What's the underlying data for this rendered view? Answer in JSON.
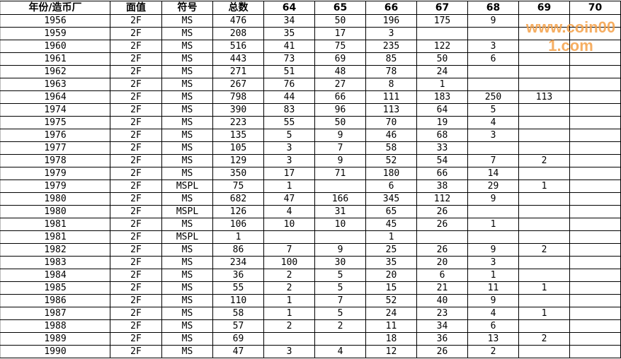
{
  "headers": [
    "年份/造币厂",
    "面值",
    "符号",
    "总数",
    "64",
    "65",
    "66",
    "67",
    "68",
    "69",
    "70"
  ],
  "rows": [
    [
      "1956",
      "2F",
      "MS",
      "476",
      "34",
      "50",
      "196",
      "175",
      "9",
      "",
      ""
    ],
    [
      "1959",
      "2F",
      "MS",
      "208",
      "35",
      "17",
      "3",
      "",
      "",
      "",
      ""
    ],
    [
      "1960",
      "2F",
      "MS",
      "516",
      "41",
      "75",
      "235",
      "122",
      "3",
      "",
      ""
    ],
    [
      "1961",
      "2F",
      "MS",
      "443",
      "73",
      "69",
      "85",
      "50",
      "6",
      "",
      ""
    ],
    [
      "1962",
      "2F",
      "MS",
      "271",
      "51",
      "48",
      "78",
      "24",
      "",
      "",
      ""
    ],
    [
      "1963",
      "2F",
      "MS",
      "267",
      "76",
      "27",
      "8",
      "1",
      "",
      "",
      ""
    ],
    [
      "1964",
      "2F",
      "MS",
      "798",
      "44",
      "66",
      "111",
      "183",
      "250",
      "113",
      ""
    ],
    [
      "1974",
      "2F",
      "MS",
      "390",
      "83",
      "96",
      "113",
      "64",
      "5",
      "",
      ""
    ],
    [
      "1975",
      "2F",
      "MS",
      "223",
      "55",
      "50",
      "70",
      "19",
      "4",
      "",
      ""
    ],
    [
      "1976",
      "2F",
      "MS",
      "135",
      "5",
      "9",
      "46",
      "68",
      "3",
      "",
      ""
    ],
    [
      "1977",
      "2F",
      "MS",
      "105",
      "3",
      "7",
      "58",
      "33",
      "",
      "",
      ""
    ],
    [
      "1978",
      "2F",
      "MS",
      "129",
      "3",
      "9",
      "52",
      "54",
      "7",
      "2",
      ""
    ],
    [
      "1979",
      "2F",
      "MS",
      "350",
      "17",
      "71",
      "180",
      "66",
      "14",
      "",
      ""
    ],
    [
      "1979",
      "2F",
      "MSPL",
      "75",
      "1",
      "",
      "6",
      "38",
      "29",
      "1",
      ""
    ],
    [
      "1980",
      "2F",
      "MS",
      "682",
      "47",
      "166",
      "345",
      "112",
      "9",
      "",
      ""
    ],
    [
      "1980",
      "2F",
      "MSPL",
      "126",
      "4",
      "31",
      "65",
      "26",
      "",
      "",
      ""
    ],
    [
      "1981",
      "2F",
      "MS",
      "106",
      "10",
      "10",
      "45",
      "26",
      "1",
      "",
      ""
    ],
    [
      "1981",
      "2F",
      "MSPL",
      "1",
      "",
      "",
      "1",
      "",
      "",
      "",
      ""
    ],
    [
      "1982",
      "2F",
      "MS",
      "86",
      "7",
      "9",
      "25",
      "26",
      "9",
      "2",
      ""
    ],
    [
      "1983",
      "2F",
      "MS",
      "234",
      "100",
      "30",
      "35",
      "20",
      "3",
      "",
      ""
    ],
    [
      "1984",
      "2F",
      "MS",
      "36",
      "2",
      "5",
      "20",
      "6",
      "1",
      "",
      ""
    ],
    [
      "1985",
      "2F",
      "MS",
      "55",
      "2",
      "5",
      "15",
      "21",
      "11",
      "1",
      ""
    ],
    [
      "1986",
      "2F",
      "MS",
      "110",
      "1",
      "7",
      "52",
      "40",
      "9",
      "",
      ""
    ],
    [
      "1987",
      "2F",
      "MS",
      "58",
      "1",
      "5",
      "24",
      "23",
      "4",
      "1",
      ""
    ],
    [
      "1988",
      "2F",
      "MS",
      "57",
      "2",
      "2",
      "11",
      "34",
      "6",
      "",
      ""
    ],
    [
      "1989",
      "2F",
      "MS",
      "69",
      "",
      "",
      "18",
      "36",
      "13",
      "2",
      ""
    ],
    [
      "1990",
      "2F",
      "MS",
      "47",
      "3",
      "4",
      "12",
      "26",
      "2",
      "",
      ""
    ]
  ],
  "watermark": "www.coin001.com"
}
